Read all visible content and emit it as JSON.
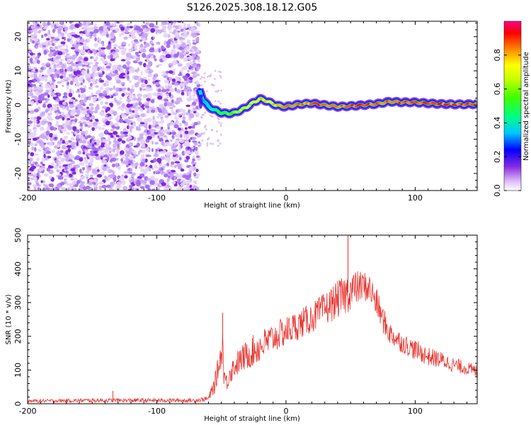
{
  "title": "S126.2025.308.18.12.G05",
  "chart_data": [
    {
      "type": "heatmap",
      "title": "S126.2025.308.18.12.G05",
      "xlabel": "Height of straight line (km)",
      "ylabel": "Frequency (Hz)",
      "xlim": [
        -200,
        148
      ],
      "ylim": [
        -25,
        24.5
      ],
      "xticks": [
        -200,
        -100,
        0,
        100
      ],
      "yticks": [
        20,
        10,
        0,
        -10,
        -20
      ],
      "noise_region_x": [
        -200,
        -67
      ],
      "ridge": {
        "x": [
          -67,
          -64,
          -60,
          -55,
          -50,
          -45,
          -40,
          -35,
          -30,
          -25,
          -20,
          -15,
          -10,
          -5,
          0,
          10,
          20,
          30,
          40,
          50,
          60,
          70,
          80,
          90,
          100,
          110,
          120,
          130,
          140,
          148
        ],
        "y": [
          4.5,
          1.5,
          -0.5,
          -1.5,
          -2.3,
          -2.5,
          -2.3,
          -1.5,
          -0.5,
          0.8,
          1.8,
          1.2,
          0.3,
          -0.3,
          -0.5,
          0.2,
          0.5,
          0.0,
          -0.5,
          -0.3,
          0.0,
          0.3,
          1.0,
          0.8,
          0.8,
          0.5,
          0.3,
          0.2,
          0.2,
          0.3
        ],
        "amplitude": [
          0.3,
          0.35,
          0.4,
          0.5,
          0.55,
          0.6,
          0.65,
          0.7,
          0.75,
          0.78,
          0.8,
          0.8,
          0.82,
          0.85,
          0.88,
          0.9,
          0.92,
          0.92,
          0.93,
          0.95,
          0.95,
          0.95,
          0.95,
          0.95,
          0.95,
          0.95,
          0.94,
          0.94,
          0.93,
          0.93
        ]
      },
      "colorbar": {
        "label": "Normalized spectral amplitude",
        "range": [
          0.0,
          1.0
        ],
        "ticks": [
          "0.0",
          "0.2",
          "0.4",
          "0.6",
          "0.8"
        ]
      }
    },
    {
      "type": "line",
      "xlabel": "Height of straight line (km)",
      "ylabel": "SNR (10 * v/v)",
      "xlim": [
        -200,
        148
      ],
      "ylim": [
        0,
        500
      ],
      "xticks": [
        -200,
        -100,
        0,
        100
      ],
      "yticks": [
        0,
        100,
        200,
        300,
        400,
        500
      ],
      "series": [
        {
          "name": "SNR",
          "color": "#e8332e",
          "x": [
            -200,
            -150,
            -134,
            -133,
            -100,
            -70,
            -60,
            -55,
            -50,
            -49,
            -48,
            -46,
            -44,
            -40,
            -35,
            -30,
            -20,
            -10,
            0,
            10,
            20,
            30,
            40,
            45,
            48,
            50,
            52,
            60,
            65,
            70,
            75,
            80,
            90,
            100,
            110,
            120,
            130,
            140,
            148
          ],
          "center": [
            8,
            10,
            10,
            10,
            10,
            10,
            15,
            60,
            150,
            180,
            90,
            60,
            90,
            110,
            130,
            145,
            170,
            195,
            215,
            235,
            255,
            280,
            310,
            320,
            330,
            335,
            340,
            350,
            340,
            300,
            250,
            210,
            180,
            160,
            140,
            130,
            115,
            105,
            95
          ],
          "amplitude": [
            5,
            6,
            6,
            6,
            6,
            6,
            8,
            30,
            40,
            60,
            40,
            30,
            35,
            35,
            40,
            45,
            50,
            45,
            45,
            45,
            45,
            50,
            55,
            60,
            60,
            60,
            55,
            45,
            45,
            45,
            40,
            35,
            30,
            30,
            28,
            25,
            22,
            20,
            20
          ]
        }
      ],
      "peaks": [
        {
          "x": -134,
          "y": 38
        },
        {
          "x": -49,
          "y": 270
        },
        {
          "x": 48,
          "y": 500
        }
      ]
    }
  ]
}
